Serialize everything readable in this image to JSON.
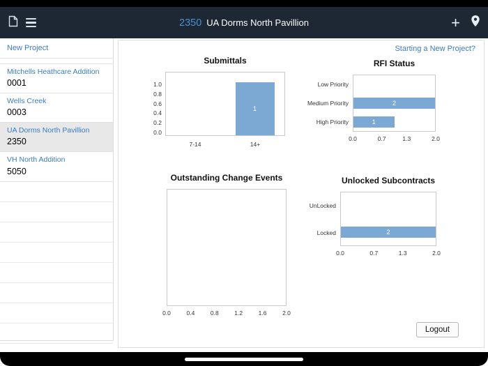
{
  "navbar": {
    "project_number": "2350",
    "title": "UA Dorms North Pavillion",
    "icons": {
      "left": [
        "document-icon",
        "menu-icon"
      ],
      "right": [
        "add-icon",
        "location-pin-icon"
      ]
    }
  },
  "sidebar": {
    "new_project_label": "New Project",
    "projects": [
      {
        "name": "Mitchells Heathcare Addition",
        "number": "0001",
        "selected": false
      },
      {
        "name": "Wells Creek",
        "number": "0003",
        "selected": false
      },
      {
        "name": "UA Dorms North Pavillion",
        "number": "2350",
        "selected": true
      },
      {
        "name": "VH North Addition",
        "number": "5050",
        "selected": false
      }
    ]
  },
  "main": {
    "new_project_link": "Starting a New Project?",
    "logout_label": "Logout"
  },
  "colors": {
    "accent_blue": "#4a90d2",
    "link_blue": "#3a7cbf",
    "bar_blue": "#7ca9d3",
    "navbar_bg": "#1d2834"
  },
  "chart_data": [
    {
      "type": "bar",
      "orientation": "vertical",
      "title": "Submittals",
      "categories": [
        "7-14",
        "14+"
      ],
      "values": [
        0,
        1
      ],
      "ymax": 1.0,
      "yticks": [
        "1.0",
        "0.8",
        "0.6",
        "0.4",
        "0.2",
        "0.0"
      ]
    },
    {
      "type": "bar",
      "orientation": "horizontal",
      "title": "RFI Status",
      "categories": [
        "Low Priority",
        "Medium Priority",
        "High Priority"
      ],
      "values": [
        0,
        2,
        1
      ],
      "xmax": 2.0,
      "xticks": [
        "0.0",
        "0.7",
        "1.3",
        "2.0"
      ]
    },
    {
      "type": "bar",
      "orientation": "vertical",
      "title": "Outstanding Change Events",
      "categories": [],
      "values": [],
      "xmax": 2.0,
      "xticks": [
        "0.0",
        "0.4",
        "0.8",
        "1.2",
        "1.6",
        "2.0"
      ]
    },
    {
      "type": "bar",
      "orientation": "horizontal",
      "title": "Unlocked Subcontracts",
      "categories": [
        "UnLocked",
        "Locked"
      ],
      "values": [
        0,
        2
      ],
      "xmax": 2.0,
      "xticks": [
        "0.0",
        "0.7",
        "1.3",
        "2.0"
      ]
    }
  ]
}
